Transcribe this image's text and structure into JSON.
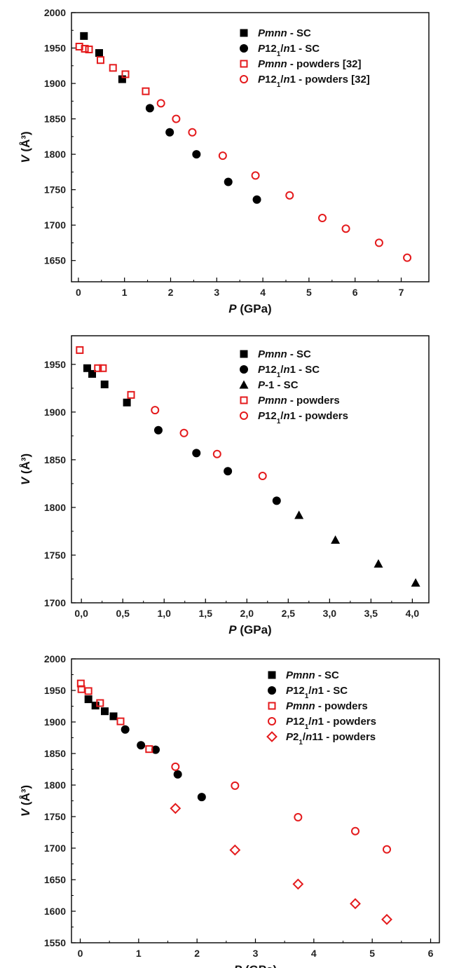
{
  "colors": {
    "sc": "#000000",
    "powders": "#e41a1c"
  },
  "chart_data": [
    {
      "type": "scatter",
      "xlabel": "P (GPa)",
      "ylabel": "V (Å³)",
      "xlim": [
        -0.15,
        7.6
      ],
      "ylim": [
        1620,
        2000
      ],
      "x_ticks": [
        0,
        1,
        2,
        3,
        4,
        5,
        6,
        7
      ],
      "x_tick_labels": [
        "0",
        "1",
        "2",
        "3",
        "4",
        "5",
        "6",
        "7"
      ],
      "y_ticks": [
        1650,
        1700,
        1750,
        1800,
        1850,
        1900,
        1950,
        2000
      ],
      "y_tick_labels": [
        "1650",
        "1700",
        "1750",
        "1800",
        "1850",
        "1900",
        "1950",
        "2000"
      ],
      "legend_position": "top-right",
      "series": [
        {
          "name": "Pmnn - SC",
          "label_parts": [
            "Pmnn",
            " - SC"
          ],
          "marker": "square-filled",
          "color": "#000000",
          "x": [
            0.12,
            0.45,
            0.95
          ],
          "y": [
            1967,
            1943,
            1906
          ]
        },
        {
          "name": "P12₁/n1 - SC",
          "label_parts": [
            "P",
            "12",
            "1",
            "/",
            "n",
            "1",
            " - SC"
          ],
          "marker": "circle-filled",
          "color": "#000000",
          "x": [
            1.55,
            1.98,
            2.56,
            3.25,
            3.87
          ],
          "y": [
            1865,
            1831,
            1800,
            1761,
            1736
          ]
        },
        {
          "name": "Pmnn - powders [32]",
          "label_parts": [
            "Pmnn",
            " - powders [32]"
          ],
          "marker": "square-open",
          "color": "#e41a1c",
          "x": [
            0.02,
            0.14,
            0.23,
            0.48,
            0.75,
            1.02,
            1.46
          ],
          "y": [
            1952,
            1949,
            1948,
            1933,
            1922,
            1913,
            1889
          ]
        },
        {
          "name": "P12₁/n1 - powders [32]",
          "label_parts": [
            "P",
            "12",
            "1",
            "/",
            "n",
            "1",
            " - powders [32]"
          ],
          "marker": "circle-open",
          "color": "#e41a1c",
          "x": [
            1.79,
            2.12,
            2.47,
            3.13,
            3.84,
            4.58,
            5.29,
            5.8,
            6.52,
            7.13
          ],
          "y": [
            1872,
            1850,
            1831,
            1798,
            1770,
            1742,
            1710,
            1695,
            1675,
            1654
          ]
        }
      ]
    },
    {
      "type": "scatter",
      "xlabel": "P (GPa)",
      "ylabel": "V (Å³)",
      "xlim": [
        -0.12,
        4.2
      ],
      "ylim": [
        1700,
        1980
      ],
      "x_ticks": [
        0,
        0.5,
        1,
        1.5,
        2,
        2.5,
        3,
        3.5,
        4
      ],
      "x_tick_labels": [
        "0,0",
        "0,5",
        "1,0",
        "1,5",
        "2,0",
        "2,5",
        "3,0",
        "3,5",
        "4,0"
      ],
      "y_ticks": [
        1700,
        1750,
        1800,
        1850,
        1900,
        1950
      ],
      "y_tick_labels": [
        "1700",
        "1750",
        "1800",
        "1850",
        "1900",
        "1950"
      ],
      "legend_position": "top-right",
      "series": [
        {
          "name": "Pmnn - SC",
          "label_parts": [
            "Pmnn",
            " - SC"
          ],
          "marker": "square-filled",
          "color": "#000000",
          "x": [
            0.07,
            0.13,
            0.28,
            0.55
          ],
          "y": [
            1946,
            1940,
            1929,
            1910
          ]
        },
        {
          "name": "P12₁/n1 - SC",
          "label_parts": [
            "P",
            "12",
            "1",
            "/",
            "n",
            "1",
            " - SC"
          ],
          "marker": "circle-filled",
          "color": "#000000",
          "x": [
            0.93,
            1.39,
            1.77,
            2.36
          ],
          "y": [
            1881,
            1857,
            1838,
            1807
          ]
        },
        {
          "name": "P-1 - SC",
          "label_parts": [
            "P",
            "-1 - SC"
          ],
          "marker": "triangle-filled",
          "color": "#000000",
          "x": [
            2.63,
            3.07,
            3.59,
            4.04
          ],
          "y": [
            1792,
            1766,
            1741,
            1721
          ]
        },
        {
          "name": "Pmnn - powders",
          "label_parts": [
            "Pmnn",
            " - powders"
          ],
          "marker": "square-open",
          "color": "#e41a1c",
          "x": [
            -0.02,
            0.2,
            0.26,
            0.6
          ],
          "y": [
            1965,
            1946,
            1946,
            1918
          ]
        },
        {
          "name": "P12₁/n1 - powders",
          "label_parts": [
            "P",
            "12",
            "1",
            "/",
            "n",
            "1",
            " - powders"
          ],
          "marker": "circle-open",
          "color": "#e41a1c",
          "x": [
            0.89,
            1.24,
            1.64,
            2.19
          ],
          "y": [
            1902,
            1878,
            1856,
            1833
          ]
        }
      ]
    },
    {
      "type": "scatter",
      "xlabel": "P (GPa)",
      "ylabel": "V (Å³)",
      "xlim": [
        -0.15,
        6.15
      ],
      "ylim": [
        1550,
        2000
      ],
      "x_ticks": [
        0,
        1,
        2,
        3,
        4,
        5,
        6
      ],
      "x_tick_labels": [
        "0",
        "1",
        "2",
        "3",
        "4",
        "5",
        "6"
      ],
      "y_ticks": [
        1550,
        1600,
        1650,
        1700,
        1750,
        1800,
        1850,
        1900,
        1950,
        2000
      ],
      "y_tick_labels": [
        "1550",
        "1600",
        "1650",
        "1700",
        "1750",
        "1800",
        "1850",
        "1900",
        "1950",
        "2000"
      ],
      "legend_position": "top-right",
      "series": [
        {
          "name": "Pmnn - SC",
          "label_parts": [
            "Pmnn",
            " - SC"
          ],
          "marker": "square-filled",
          "color": "#000000",
          "x": [
            0.14,
            0.26,
            0.42,
            0.57
          ],
          "y": [
            1936,
            1926,
            1917,
            1909
          ]
        },
        {
          "name": "P12₁/n1 - SC",
          "label_parts": [
            "P",
            "12",
            "1",
            "/",
            "n",
            "1",
            " - SC"
          ],
          "marker": "circle-filled",
          "color": "#000000",
          "x": [
            0.77,
            1.04,
            1.29,
            1.67,
            2.08
          ],
          "y": [
            1888,
            1863,
            1856,
            1817,
            1781
          ]
        },
        {
          "name": "Pmnn - powders",
          "label_parts": [
            "Pmnn",
            " - powders"
          ],
          "marker": "square-open",
          "color": "#e41a1c",
          "x": [
            0.01,
            0.02,
            0.14,
            0.34,
            0.69,
            1.18
          ],
          "y": [
            1961,
            1952,
            1949,
            1930,
            1901,
            1857
          ]
        },
        {
          "name": "P12₁/n1 - powders",
          "label_parts": [
            "P",
            "12",
            "1",
            "/",
            "n",
            "1",
            " - powders"
          ],
          "marker": "circle-open",
          "color": "#e41a1c",
          "x": [
            1.63,
            2.65,
            3.73,
            4.71,
            5.25
          ],
          "y": [
            1829,
            1799,
            1749,
            1727,
            1698
          ]
        },
        {
          "name": "P2₁/n11 - powders",
          "label_parts": [
            "P",
            "2",
            "1",
            "/",
            "n",
            "11",
            " - powders"
          ],
          "marker": "diamond-open",
          "color": "#e41a1c",
          "x": [
            1.63,
            2.65,
            3.73,
            4.71,
            5.25
          ],
          "y": [
            1763,
            1697,
            1643,
            1612,
            1587
          ]
        }
      ]
    }
  ]
}
